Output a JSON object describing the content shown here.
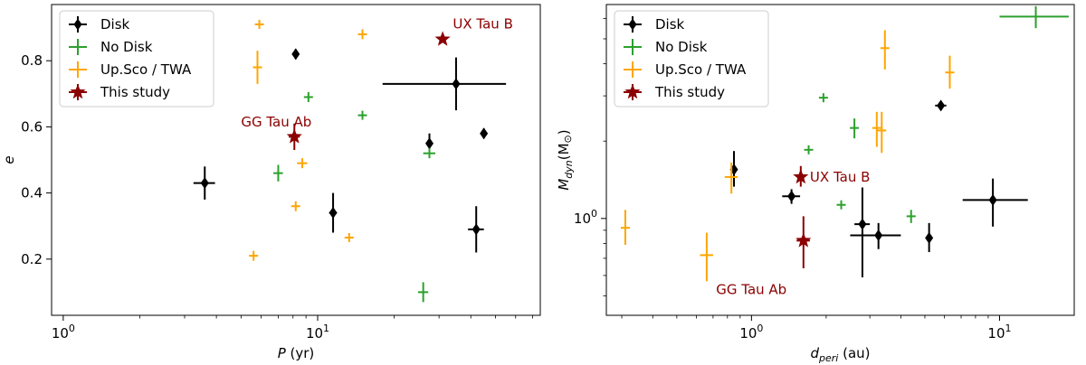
{
  "colors": {
    "disk": "#000000",
    "nodisk": "#2ca02c",
    "upsco": "#ffa500",
    "study": "#8b0000"
  },
  "legend": {
    "labels": [
      "Disk",
      "No Disk",
      "Up.Sco / TWA",
      "This study"
    ],
    "series_keys": [
      "disk",
      "nodisk",
      "upsco",
      "study"
    ]
  },
  "chart_data": [
    {
      "type": "scatter",
      "xscale": "log",
      "xlim": [
        0.9,
        75
      ],
      "ylim": [
        0.03,
        0.97
      ],
      "xlabel_main": "P",
      "xlabel_unit": " (yr)",
      "ylabel": "e",
      "xticks": [
        {
          "value": 1,
          "base": "10",
          "exp": "0"
        },
        {
          "value": 10,
          "base": "10",
          "exp": "1"
        }
      ],
      "yticks": [
        {
          "value": 0.2,
          "label": "0.2"
        },
        {
          "value": 0.4,
          "label": "0.4"
        },
        {
          "value": 0.6,
          "label": "0.6"
        },
        {
          "value": 0.8,
          "label": "0.8"
        }
      ],
      "legend_position": "upper-left",
      "series": {
        "disk": [
          {
            "x": 3.6,
            "y": 0.43,
            "xerr": [
              0.35,
              0.35
            ],
            "yerr": [
              0.05,
              0.05
            ]
          },
          {
            "x": 8.2,
            "y": 0.82,
            "xerr": [
              0,
              0
            ],
            "yerr": [
              0.015,
              0.015
            ]
          },
          {
            "x": 11.5,
            "y": 0.34,
            "xerr": [
              0.4,
              0.4
            ],
            "yerr": [
              0.06,
              0.06
            ]
          },
          {
            "x": 27.5,
            "y": 0.55,
            "xerr": [
              0.8,
              0.8
            ],
            "yerr": [
              0.03,
              0.03
            ]
          },
          {
            "x": 35,
            "y": 0.73,
            "xerr": [
              17,
              20
            ],
            "yerr": [
              0.08,
              0.08
            ]
          },
          {
            "x": 42,
            "y": 0.29,
            "xerr": [
              3,
              3
            ],
            "yerr": [
              0.07,
              0.07
            ]
          },
          {
            "x": 45,
            "y": 0.58,
            "xerr": [
              0,
              0
            ],
            "yerr": [
              0.015,
              0.015
            ]
          }
        ],
        "nodisk": [
          {
            "x": 7.0,
            "y": 0.46,
            "xerr": [
              0.3,
              0.3
            ],
            "yerr": [
              0.025,
              0.025
            ]
          },
          {
            "x": 9.2,
            "y": 0.69,
            "xerr": [
              0.3,
              0.3
            ],
            "yerr": [
              0.015,
              0.015
            ]
          },
          {
            "x": 15.0,
            "y": 0.635,
            "xerr": [
              0.4,
              0.4
            ],
            "yerr": [
              0.01,
              0.01
            ]
          },
          {
            "x": 26.0,
            "y": 0.1,
            "xerr": [
              1.2,
              1.2
            ],
            "yerr": [
              0.03,
              0.03
            ]
          },
          {
            "x": 27.5,
            "y": 0.52,
            "xerr": [
              1.5,
              1.5
            ],
            "yerr": [
              0.015,
              0.015
            ]
          }
        ],
        "upsco": [
          {
            "x": 5.6,
            "y": 0.21,
            "xerr": [
              0.2,
              0.2
            ],
            "yerr": [
              0.015,
              0.015
            ]
          },
          {
            "x": 5.8,
            "y": 0.78,
            "xerr": [
              0.2,
              0.2
            ],
            "yerr": [
              0.05,
              0.05
            ]
          },
          {
            "x": 5.9,
            "y": 0.91,
            "xerr": [
              0.2,
              0.2
            ],
            "yerr": [
              0.01,
              0.01
            ]
          },
          {
            "x": 8.2,
            "y": 0.36,
            "xerr": [
              0.3,
              0.3
            ],
            "yerr": [
              0.015,
              0.015
            ]
          },
          {
            "x": 8.7,
            "y": 0.49,
            "xerr": [
              0.4,
              0.4
            ],
            "yerr": [
              0.015,
              0.015
            ]
          },
          {
            "x": 13.3,
            "y": 0.265,
            "xerr": [
              0.5,
              0.5
            ],
            "yerr": [
              0.01,
              0.01
            ]
          },
          {
            "x": 15.0,
            "y": 0.88,
            "xerr": [
              0.5,
              0.5
            ],
            "yerr": [
              0.015,
              0.015
            ]
          }
        ],
        "study": [
          {
            "x": 8.1,
            "y": 0.57,
            "xerr": [
              0.4,
              0.4
            ],
            "yerr": [
              0.04,
              0.04
            ]
          },
          {
            "x": 31,
            "y": 0.865,
            "xerr": [
              0,
              0
            ],
            "yerr": [
              0,
              0
            ]
          }
        ]
      },
      "annotations": [
        {
          "text": "UX Tau B",
          "x": 34,
          "y": 0.865,
          "anchor": "start",
          "dy": -12
        },
        {
          "text": "GG Tau Ab",
          "x": 5.0,
          "y": 0.615,
          "anchor": "start",
          "dy": 5
        }
      ]
    },
    {
      "type": "scatter",
      "xscale": "log",
      "yscale": "log",
      "xlim": [
        0.26,
        20
      ],
      "ylim": [
        0.42,
        6.8
      ],
      "xlabel_main": "d",
      "xlabel_sub": "peri",
      "xlabel_unit": " (au)",
      "ylabel_main": "M",
      "ylabel_sub": "dyn",
      "ylabel_unit": "(M",
      "ylabel_sun": "⊙",
      "ylabel_close": ")",
      "xticks": [
        {
          "value": 1,
          "base": "10",
          "exp": "0"
        },
        {
          "value": 10,
          "base": "10",
          "exp": "1"
        }
      ],
      "yticks": [
        {
          "value": 1,
          "base": "10",
          "exp": "0"
        }
      ],
      "legend_position": "upper-left",
      "series": {
        "disk": [
          {
            "x": 0.85,
            "y": 1.55,
            "xerr": [
              0.02,
              0.02
            ],
            "yerr": [
              0.22,
              0.28
            ]
          },
          {
            "x": 1.45,
            "y": 1.22,
            "xerr": [
              0.12,
              0.12
            ],
            "yerr": [
              0.08,
              0.08
            ]
          },
          {
            "x": 2.8,
            "y": 0.95,
            "xerr": [
              0.2,
              0.2
            ],
            "yerr": [
              0.36,
              0.37
            ]
          },
          {
            "x": 3.25,
            "y": 0.86,
            "xerr": [
              0.75,
              0.75
            ],
            "yerr": [
              0.1,
              0.1
            ]
          },
          {
            "x": 5.2,
            "y": 0.84,
            "xerr": [
              0,
              0
            ],
            "yerr": [
              0.1,
              0.12
            ]
          },
          {
            "x": 5.8,
            "y": 2.75,
            "xerr": [
              0.3,
              0.3
            ],
            "yerr": [
              0.1,
              0.1
            ]
          },
          {
            "x": 9.4,
            "y": 1.18,
            "xerr": [
              2.3,
              3.6
            ],
            "yerr": [
              0.25,
              0.25
            ]
          }
        ],
        "nodisk": [
          {
            "x": 1.7,
            "y": 1.85,
            "xerr": [
              0.04,
              0.04
            ],
            "yerr": [
              0.05,
              0.05
            ]
          },
          {
            "x": 1.95,
            "y": 2.95,
            "xerr": [
              0.03,
              0.03
            ],
            "yerr": [
              0.08,
              0.08
            ]
          },
          {
            "x": 2.3,
            "y": 1.13,
            "xerr": [
              0.04,
              0.04
            ],
            "yerr": [
              0.03,
              0.03
            ]
          },
          {
            "x": 2.6,
            "y": 2.25,
            "xerr": [
              0.06,
              0.06
            ],
            "yerr": [
              0.2,
              0.2
            ]
          },
          {
            "x": 4.4,
            "y": 1.02,
            "xerr": [
              0.06,
              0.06
            ],
            "yerr": [
              0.06,
              0.06
            ]
          },
          {
            "x": 14,
            "y": 6.1,
            "xerr": [
              4,
              5
            ],
            "yerr": [
              0.6,
              0.6
            ]
          }
        ],
        "upsco": [
          {
            "x": 0.31,
            "y": 0.92,
            "xerr": [
              0.01,
              0.01
            ],
            "yerr": [
              0.13,
              0.16
            ]
          },
          {
            "x": 0.66,
            "y": 0.72,
            "xerr": [
              0.04,
              0.04
            ],
            "yerr": [
              0.15,
              0.16
            ]
          },
          {
            "x": 0.83,
            "y": 1.45,
            "xerr": [
              0.05,
              0.05
            ],
            "yerr": [
              0.2,
              0.2
            ]
          },
          {
            "x": 3.2,
            "y": 2.25,
            "xerr": [
              0.08,
              0.08
            ],
            "yerr": [
              0.35,
              0.35
            ]
          },
          {
            "x": 3.35,
            "y": 2.2,
            "xerr": [
              0.08,
              0.08
            ],
            "yerr": [
              0.4,
              0.4
            ]
          },
          {
            "x": 3.45,
            "y": 4.6,
            "xerr": [
              0.05,
              0.05
            ],
            "yerr": [
              0.8,
              0.8
            ]
          },
          {
            "x": 6.3,
            "y": 3.7,
            "xerr": [
              0.15,
              0.15
            ],
            "yerr": [
              0.5,
              0.6
            ]
          }
        ],
        "study": [
          {
            "x": 1.58,
            "y": 1.45,
            "xerr": [
              0.03,
              0.03
            ],
            "yerr": [
              0.12,
              0.15
            ]
          },
          {
            "x": 1.62,
            "y": 0.82,
            "xerr": [
              0.1,
              0.1
            ],
            "yerr": [
              0.18,
              0.2
            ]
          }
        ]
      },
      "annotations": [
        {
          "text": "UX Tau B",
          "x": 1.72,
          "y": 1.45,
          "anchor": "start",
          "dy": 5
        },
        {
          "text": "GG Tau Ab",
          "x": 0.72,
          "y": 0.53,
          "anchor": "start",
          "dy": 5
        }
      ]
    }
  ]
}
